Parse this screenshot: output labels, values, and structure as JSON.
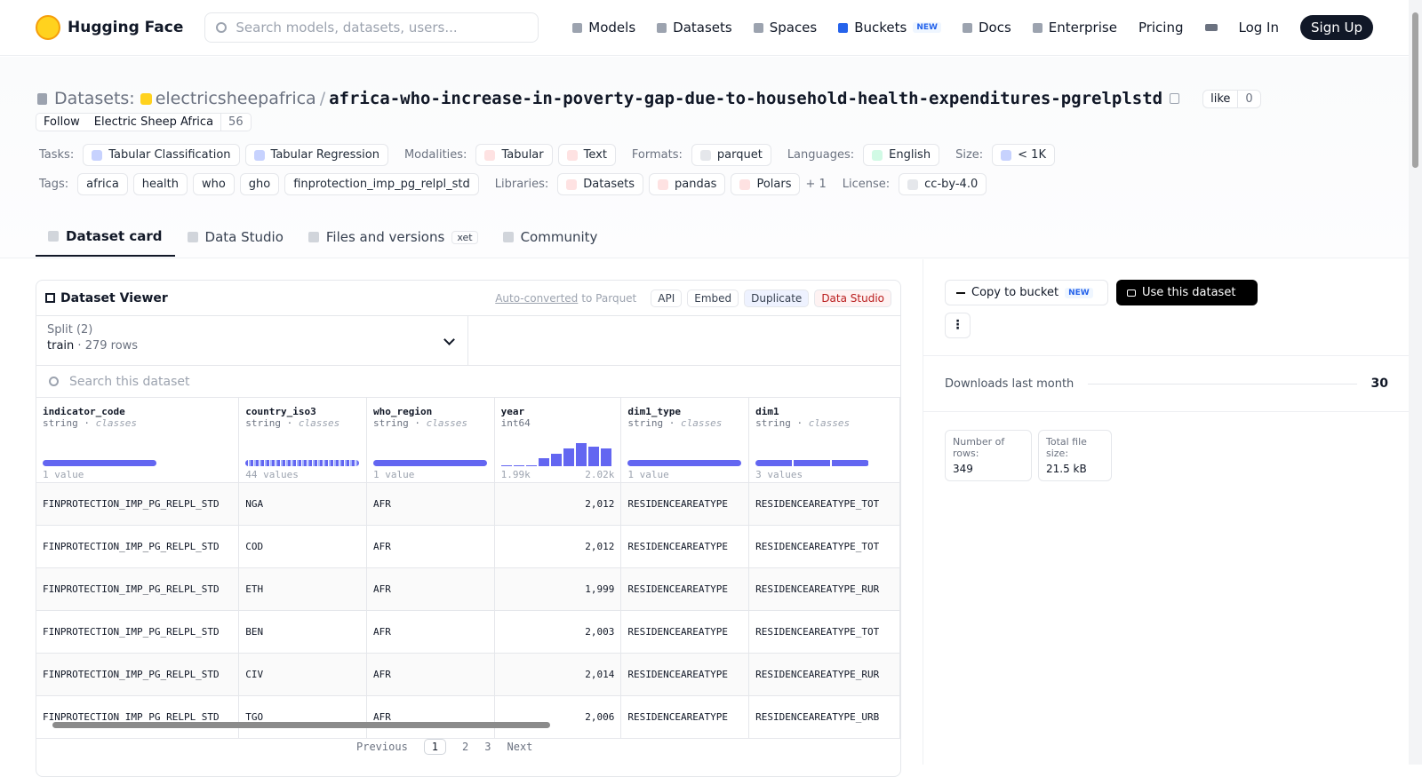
{
  "header": {
    "brand": "Hugging Face",
    "search": "Search models, datasets, users...",
    "nav": [
      "Models",
      "Datasets",
      "Spaces",
      "Buckets",
      "Docs",
      "Enterprise",
      "Pricing"
    ],
    "new_badge": "NEW",
    "login": "Log In",
    "signup": "Sign Up"
  },
  "repo": {
    "kind": "Datasets:",
    "owner": "electricsheepafrica",
    "slash": "/",
    "name": "africa-who-increase-in-poverty-gap-due-to-household-health-expenditures-pgrelplstd",
    "like": "like",
    "likes": 0,
    "follow": "Follow",
    "org": "Electric Sheep Africa",
    "followers": 56
  },
  "meta": {
    "rows": [
      [
        {
          "label": "Tasks:",
          "items": [
            "Tabular Classification",
            "Tabular Regression"
          ]
        },
        {
          "label": "Modalities:",
          "items": [
            "Tabular",
            "Text"
          ]
        },
        {
          "label": "Formats:",
          "items": [
            "parquet"
          ]
        },
        {
          "label": "Languages:",
          "items": [
            "English"
          ]
        },
        {
          "label": "Size:",
          "items": [
            "< 1K"
          ]
        }
      ],
      [
        {
          "label": "Tags:",
          "items": [
            "africa",
            "health",
            "who",
            "gho",
            "finprotection_imp_pg_relpl_std"
          ]
        },
        {
          "label": "Libraries:",
          "items": [
            "Datasets",
            "pandas",
            "Polars"
          ],
          "more": "+ 1"
        },
        {
          "label": "License:",
          "items": [
            "cc-by-4.0"
          ]
        }
      ]
    ]
  },
  "tabs": [
    {
      "label": "Dataset card"
    },
    {
      "label": "Data Studio"
    },
    {
      "label": "Files and versions",
      "badge": "xet"
    },
    {
      "label": "Community"
    }
  ],
  "viewer": {
    "title": "Dataset Viewer",
    "auto": "Auto-converted",
    "to_parquet": "to Parquet",
    "actions": [
      "API",
      "Embed",
      "Duplicate",
      "Data Studio"
    ],
    "split_label": "Split (2)",
    "split": "train",
    "dot": "·",
    "split_rows": "279 rows",
    "search": "Search this dataset",
    "columns": [
      {
        "name": "indicator_code",
        "dtype": "string",
        "kind": "classes",
        "stat": "1 value"
      },
      {
        "name": "country_iso3",
        "dtype": "string",
        "kind": "classes",
        "stat": "44 values"
      },
      {
        "name": "who_region",
        "dtype": "string",
        "kind": "classes",
        "stat": "1 value"
      },
      {
        "name": "year",
        "dtype": "int64",
        "min": "1.99k",
        "max": "2.02k"
      },
      {
        "name": "dim1_type",
        "dtype": "string",
        "kind": "classes",
        "stat": "1 value"
      },
      {
        "name": "dim1",
        "dtype": "string",
        "kind": "classes",
        "stat": "3 values"
      }
    ],
    "rows": [
      [
        "FINPROTECTION_IMP_PG_RELPL_STD",
        "NGA",
        "AFR",
        "2,012",
        "RESIDENCEAREATYPE",
        "RESIDENCEAREATYPE_TOT"
      ],
      [
        "FINPROTECTION_IMP_PG_RELPL_STD",
        "COD",
        "AFR",
        "2,012",
        "RESIDENCEAREATYPE",
        "RESIDENCEAREATYPE_TOT"
      ],
      [
        "FINPROTECTION_IMP_PG_RELPL_STD",
        "ETH",
        "AFR",
        "1,999",
        "RESIDENCEAREATYPE",
        "RESIDENCEAREATYPE_RUR"
      ],
      [
        "FINPROTECTION_IMP_PG_RELPL_STD",
        "BEN",
        "AFR",
        "2,003",
        "RESIDENCEAREATYPE",
        "RESIDENCEAREATYPE_TOT"
      ],
      [
        "FINPROTECTION_IMP_PG_RELPL_STD",
        "CIV",
        "AFR",
        "2,014",
        "RESIDENCEAREATYPE",
        "RESIDENCEAREATYPE_RUR"
      ],
      [
        "FINPROTECTION_IMP_PG_RELPL_STD",
        "TGO",
        "AFR",
        "2,006",
        "RESIDENCEAREATYPE",
        "RESIDENCEAREATYPE_URB"
      ]
    ],
    "pages": {
      "prev": "Previous",
      "numbers": [
        "1",
        "2",
        "3"
      ],
      "next": "Next"
    }
  },
  "sidebar": {
    "copy": "Copy to bucket",
    "new": "NEW",
    "use": "Use this dataset",
    "downloads_label": "Downloads last month",
    "downloads": 30,
    "rows_label": "Number of rows:",
    "rows": "349",
    "size_label": "Total file size:",
    "size": "21.5 kB"
  }
}
